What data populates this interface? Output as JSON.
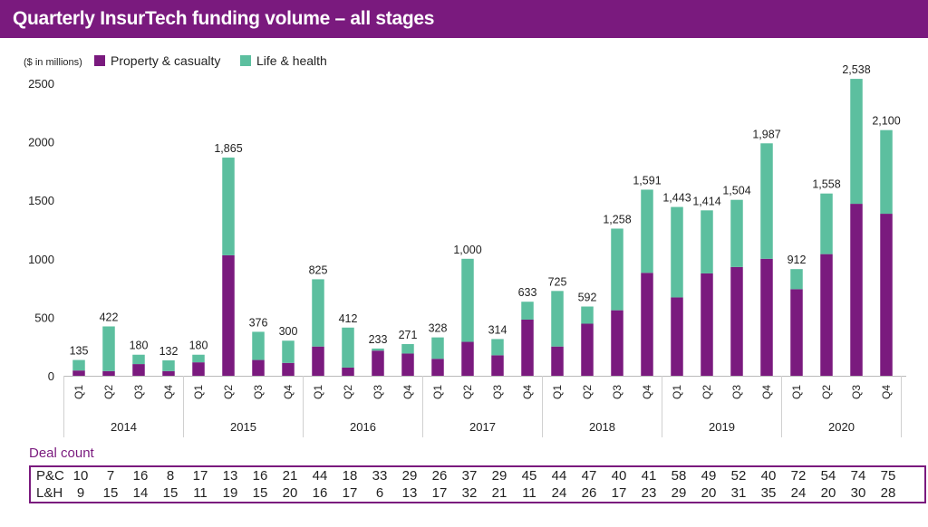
{
  "header": {
    "title": "Quarterly InsurTech funding volume – all stages"
  },
  "colors": {
    "pc": "#7a1a7e",
    "lh": "#5cbf9f",
    "header": "#7a1a7e"
  },
  "chart_data": {
    "type": "bar",
    "stacked": true,
    "unit_label": "($ in millions)",
    "years": [
      "2014",
      "2015",
      "2016",
      "2017",
      "2018",
      "2019",
      "2020"
    ],
    "categories": [
      "Q1",
      "Q2",
      "Q3",
      "Q4",
      "Q1",
      "Q2",
      "Q3",
      "Q4",
      "Q1",
      "Q2",
      "Q3",
      "Q4",
      "Q1",
      "Q2",
      "Q3",
      "Q4",
      "Q1",
      "Q2",
      "Q3",
      "Q4",
      "Q1",
      "Q2",
      "Q3",
      "Q4",
      "Q1",
      "Q2",
      "Q3",
      "Q4"
    ],
    "series": [
      {
        "name": "Property & casualty",
        "values": [
          45,
          40,
          100,
          40,
          115,
          1030,
          135,
          110,
          250,
          70,
          215,
          190,
          145,
          290,
          175,
          480,
          250,
          445,
          560,
          880,
          670,
          875,
          930,
          1000,
          740,
          1040,
          1470,
          1385
        ]
      },
      {
        "name": "Life & health",
        "values": [
          90,
          382,
          80,
          92,
          65,
          835,
          241,
          190,
          575,
          342,
          18,
          81,
          183,
          710,
          139,
          153,
          475,
          147,
          698,
          711,
          773,
          539,
          574,
          987,
          172,
          518,
          1068,
          715
        ]
      }
    ],
    "totals": [
      "135",
      "422",
      "180",
      "132",
      "180",
      "1,865",
      "376",
      "300",
      "825",
      "412",
      "233",
      "271",
      "328",
      "1,000",
      "314",
      "633",
      "725",
      "592",
      "1,258",
      "1,591",
      "1,443",
      "1,414",
      "1,504",
      "1,987",
      "912",
      "1,558",
      "2,538",
      "2,100"
    ],
    "yticks": [
      "0",
      "500",
      "1000",
      "1500",
      "2000",
      "2500"
    ],
    "ylim": [
      0,
      2500
    ],
    "legend": "top-left"
  },
  "deal_count": {
    "title": "Deal count",
    "rows": [
      {
        "label": "P&C",
        "values": [
          "10",
          "7",
          "16",
          "8",
          "17",
          "13",
          "16",
          "21",
          "44",
          "18",
          "33",
          "29",
          "26",
          "37",
          "29",
          "45",
          "44",
          "47",
          "40",
          "41",
          "58",
          "49",
          "52",
          "40",
          "72",
          "54",
          "74",
          "75"
        ]
      },
      {
        "label": "L&H",
        "values": [
          "9",
          "15",
          "14",
          "15",
          "11",
          "19",
          "15",
          "20",
          "16",
          "17",
          "6",
          "13",
          "17",
          "32",
          "21",
          "11",
          "24",
          "26",
          "17",
          "23",
          "29",
          "20",
          "31",
          "35",
          "24",
          "20",
          "30",
          "28"
        ]
      }
    ]
  }
}
